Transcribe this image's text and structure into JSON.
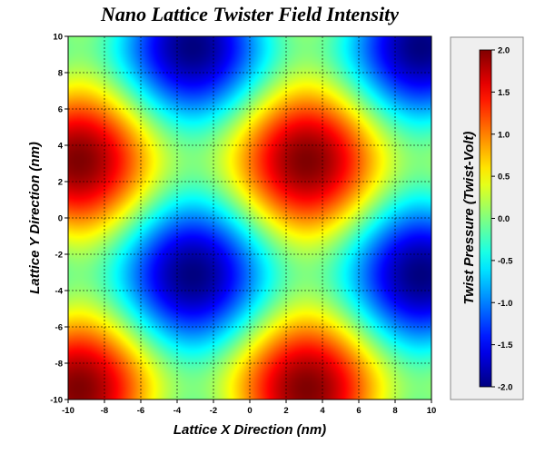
{
  "chart_data": {
    "type": "heatmap",
    "title": "Nano Lattice Twister Field Intensity",
    "xlabel": "Lattice X Direction (nm)",
    "ylabel": "Lattice Y Direction (nm)",
    "xlim": [
      -10,
      10
    ],
    "ylim": [
      -10,
      10
    ],
    "xticks": [
      -10,
      -8,
      -6,
      -4,
      -2,
      0,
      2,
      4,
      6,
      8,
      10
    ],
    "yticks": [
      -10,
      -8,
      -6,
      -4,
      -2,
      0,
      2,
      4,
      6,
      8,
      10
    ],
    "grid": true,
    "field": {
      "grid_resolution": [
        81,
        81
      ],
      "x_range": [
        -10,
        10
      ],
      "y_range": [
        -10,
        10
      ],
      "approx_peaks": [
        {
          "x": -9.4,
          "y": 3.1,
          "value": 2.0
        },
        {
          "x": 3.1,
          "y": 3.1,
          "value": 2.0
        },
        {
          "x": -9.4,
          "y": -9.4,
          "value": 2.0
        },
        {
          "x": 3.1,
          "y": -9.4,
          "value": 2.0
        }
      ],
      "approx_troughs": [
        {
          "x": -3.1,
          "y": -3.1,
          "value": -2.0
        },
        {
          "x": 9.4,
          "y": -3.1,
          "value": -2.0
        },
        {
          "x": -3.1,
          "y": 9.4,
          "value": -2.0
        },
        {
          "x": 9.4,
          "y": 9.4,
          "value": -2.0
        }
      ]
    },
    "colorbar": {
      "title": "Twist Pressure (Twist-Volt)",
      "range": [
        -2.0,
        2.0
      ],
      "ticks": [
        "2.0",
        "1.5",
        "1.0",
        "0.5",
        "0.0",
        "-0.5",
        "-1.0",
        "-1.5",
        "-2.0"
      ],
      "colormap": "jet",
      "placement": "right"
    }
  },
  "colors": {
    "colorbar_panel_bg": "#efefef",
    "colorbar_panel_border": "#888888",
    "grid": "#000000"
  }
}
